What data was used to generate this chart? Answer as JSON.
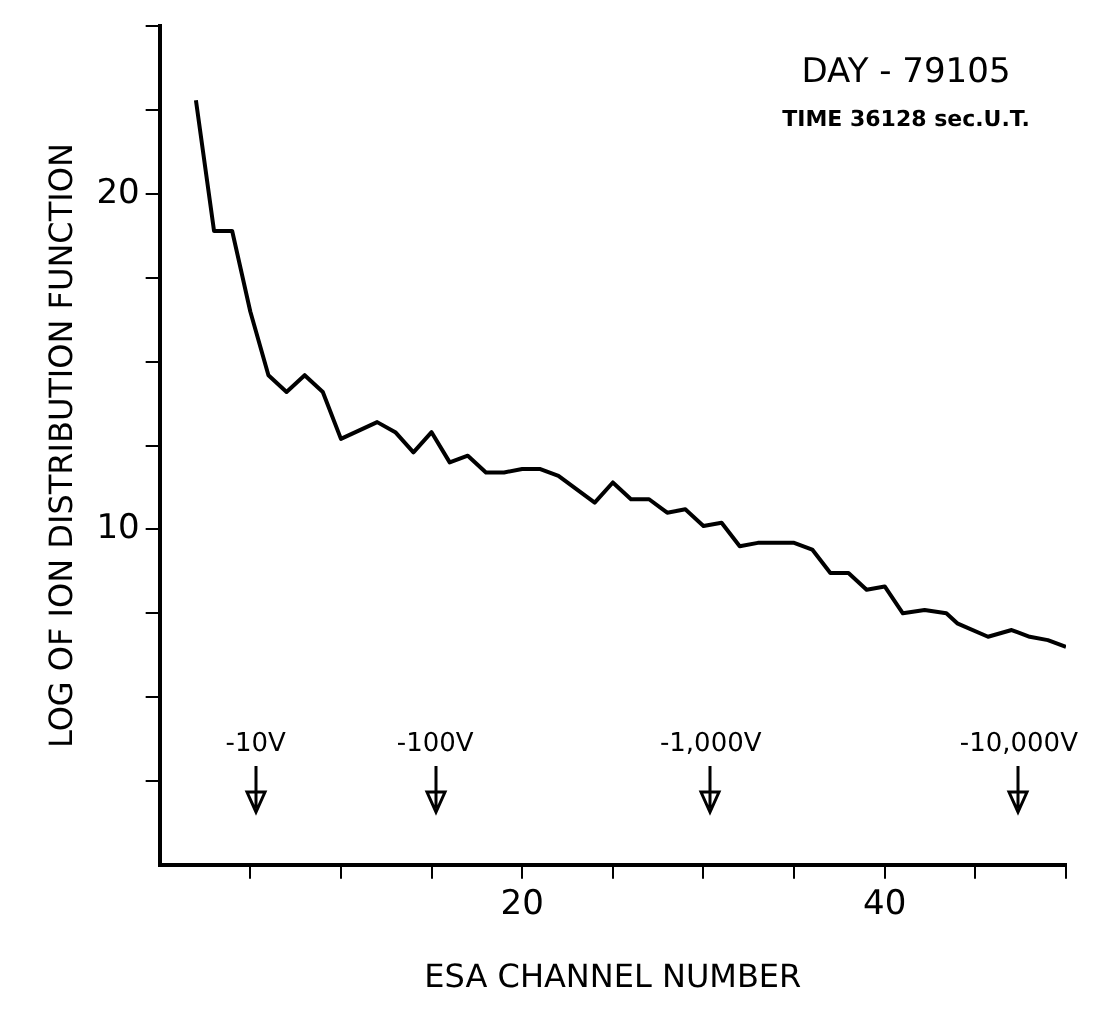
{
  "chart_data": {
    "type": "line",
    "title": "DAY - 79105",
    "subtitle": "TIME 36128 sec.U.T.",
    "xlabel": "ESA CHANNEL NUMBER",
    "ylabel": "LOG OF ION DISTRIBUTION FUNCTION",
    "x": [
      2,
      3,
      4,
      5,
      6,
      7,
      8,
      9,
      10,
      12,
      13,
      14,
      15,
      16,
      17,
      18,
      19,
      20,
      21,
      22,
      24,
      25,
      26,
      27,
      28,
      29,
      30,
      31,
      32,
      33,
      34,
      35,
      36,
      37,
      38,
      39,
      40,
      41,
      42.2,
      43.4,
      44,
      45.7,
      47,
      48,
      49,
      50
    ],
    "series": [
      {
        "color": "#000000",
        "values": [
          22.8,
          18.9,
          18.9,
          16.5,
          14.6,
          14.1,
          14.6,
          14.1,
          12.7,
          13.2,
          12.9,
          12.3,
          12.9,
          12.0,
          12.2,
          11.7,
          11.7,
          11.8,
          11.8,
          11.6,
          10.8,
          11.4,
          10.9,
          10.9,
          10.5,
          10.6,
          10.1,
          10.2,
          9.5,
          9.6,
          9.6,
          9.6,
          9.4,
          8.7,
          8.7,
          8.2,
          8.3,
          7.5,
          7.6,
          7.5,
          7.2,
          6.8,
          7.0,
          6.8,
          6.7,
          6.5
        ]
      }
    ],
    "xlim": [
      0,
      50
    ],
    "ylim": [
      0,
      25
    ],
    "xticks": [
      {
        "value": 5,
        "label": null
      },
      {
        "value": 10,
        "label": null
      },
      {
        "value": 15,
        "label": null
      },
      20,
      {
        "value": 25,
        "label": null
      },
      {
        "value": 30,
        "label": null
      },
      {
        "value": 35,
        "label": null
      },
      40,
      {
        "value": 45,
        "label": null
      },
      {
        "value": 50,
        "label": null
      }
    ],
    "yticks": [
      {
        "value": 2.5,
        "label": null
      },
      {
        "value": 5,
        "label": null
      },
      {
        "value": 7.5,
        "label": null
      },
      10,
      {
        "value": 12.5,
        "label": null
      },
      {
        "value": 15,
        "label": null
      },
      {
        "value": 17.5,
        "label": null
      },
      20,
      {
        "value": 22.5,
        "label": null
      },
      {
        "value": 25,
        "label": null
      }
    ],
    "ref_lines": [
      {
        "axis": "x",
        "value": 5.3,
        "label": "-10V"
      },
      {
        "axis": "x",
        "value": 15.2,
        "label": "-100V"
      },
      {
        "axis": "x",
        "value": 30.4,
        "label": "-1,000V"
      },
      {
        "axis": "x",
        "value": 47.4,
        "label": "-10,000V"
      }
    ],
    "grid": false,
    "legend": false,
    "marker": "none",
    "line_style": "solid"
  }
}
